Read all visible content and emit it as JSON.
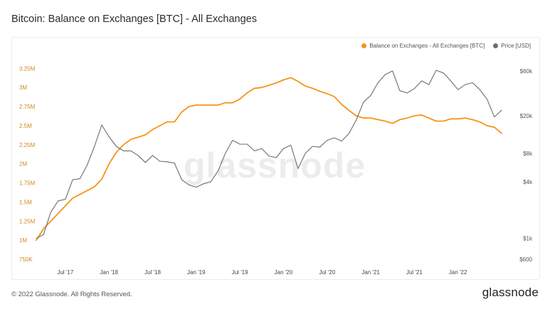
{
  "page": {
    "title": "Bitcoin: Balance on Exchanges [BTC] - All Exchanges",
    "copyright": "© 2022 Glassnode. All Rights Reserved.",
    "logo": "glassnode",
    "watermark": "glassnode"
  },
  "chart_data": {
    "type": "line",
    "legend": {
      "position": "top-right",
      "items": [
        {
          "label": "Balance on Exchanges - All Exchanges [BTC]",
          "color": "#f7931a"
        },
        {
          "label": "Price [USD]",
          "color": "#6d6d6d"
        }
      ]
    },
    "x_ticks": [
      "Jul '17",
      "Jan '18",
      "Jul '18",
      "Jan '19",
      "Jul '19",
      "Jan '20",
      "Jul '20",
      "Jan '21",
      "Jul '21",
      "Jan '22"
    ],
    "x_range": [
      "2017-03",
      "2022-07"
    ],
    "y_left": {
      "ticks": [
        "750K",
        "1M",
        "1.25M",
        "1.5M",
        "1.75M",
        "2M",
        "2.25M",
        "2.5M",
        "2.75M",
        "3M",
        "3.25M"
      ],
      "range": [
        750000,
        3300000
      ],
      "color": "#d08a1c"
    },
    "y_right": {
      "scale": "log",
      "ticks": [
        "$600",
        "$1k",
        "$4k",
        "$8k",
        "$20k",
        "$60k"
      ],
      "range": [
        600,
        70000
      ]
    },
    "grid": false,
    "series": [
      {
        "name": "Balance on Exchanges - All Exchanges [BTC]",
        "axis": "left",
        "color": "#f7931a",
        "points": [
          [
            "2017-03",
            1000000
          ],
          [
            "2017-04",
            1150000
          ],
          [
            "2017-05",
            1250000
          ],
          [
            "2017-06",
            1350000
          ],
          [
            "2017-07",
            1450000
          ],
          [
            "2017-08",
            1550000
          ],
          [
            "2017-09",
            1600000
          ],
          [
            "2017-10",
            1650000
          ],
          [
            "2017-11",
            1700000
          ],
          [
            "2017-12",
            1800000
          ],
          [
            "2018-01",
            2000000
          ],
          [
            "2018-02",
            2150000
          ],
          [
            "2018-03",
            2250000
          ],
          [
            "2018-04",
            2320000
          ],
          [
            "2018-05",
            2350000
          ],
          [
            "2018-06",
            2380000
          ],
          [
            "2018-07",
            2450000
          ],
          [
            "2018-08",
            2500000
          ],
          [
            "2018-09",
            2550000
          ],
          [
            "2018-10",
            2550000
          ],
          [
            "2018-11",
            2680000
          ],
          [
            "2018-12",
            2750000
          ],
          [
            "2019-01",
            2770000
          ],
          [
            "2019-02",
            2770000
          ],
          [
            "2019-03",
            2770000
          ],
          [
            "2019-04",
            2770000
          ],
          [
            "2019-05",
            2800000
          ],
          [
            "2019-06",
            2800000
          ],
          [
            "2019-07",
            2850000
          ],
          [
            "2019-08",
            2930000
          ],
          [
            "2019-09",
            2990000
          ],
          [
            "2019-10",
            3000000
          ],
          [
            "2019-11",
            3030000
          ],
          [
            "2019-12",
            3060000
          ],
          [
            "2020-01",
            3100000
          ],
          [
            "2020-02",
            3130000
          ],
          [
            "2020-03",
            3080000
          ],
          [
            "2020-04",
            3020000
          ],
          [
            "2020-05",
            2990000
          ],
          [
            "2020-06",
            2950000
          ],
          [
            "2020-07",
            2920000
          ],
          [
            "2020-08",
            2880000
          ],
          [
            "2020-09",
            2780000
          ],
          [
            "2020-10",
            2700000
          ],
          [
            "2020-11",
            2630000
          ],
          [
            "2020-12",
            2600000
          ],
          [
            "2021-01",
            2600000
          ],
          [
            "2021-02",
            2580000
          ],
          [
            "2021-03",
            2560000
          ],
          [
            "2021-04",
            2530000
          ],
          [
            "2021-05",
            2580000
          ],
          [
            "2021-06",
            2600000
          ],
          [
            "2021-07",
            2630000
          ],
          [
            "2021-08",
            2640000
          ],
          [
            "2021-09",
            2600000
          ],
          [
            "2021-10",
            2560000
          ],
          [
            "2021-11",
            2560000
          ],
          [
            "2021-12",
            2590000
          ],
          [
            "2022-01",
            2590000
          ],
          [
            "2022-02",
            2600000
          ],
          [
            "2022-03",
            2580000
          ],
          [
            "2022-04",
            2550000
          ],
          [
            "2022-05",
            2500000
          ],
          [
            "2022-06",
            2480000
          ],
          [
            "2022-07",
            2400000
          ]
        ]
      },
      {
        "name": "Price [USD]",
        "axis": "right",
        "color": "#6d6d6d",
        "points": [
          [
            "2017-03",
            1000
          ],
          [
            "2017-04",
            1100
          ],
          [
            "2017-05",
            1900
          ],
          [
            "2017-06",
            2500
          ],
          [
            "2017-07",
            2600
          ],
          [
            "2017-08",
            4200
          ],
          [
            "2017-09",
            4300
          ],
          [
            "2017-10",
            6000
          ],
          [
            "2017-11",
            9500
          ],
          [
            "2017-12",
            16000
          ],
          [
            "2018-01",
            12000
          ],
          [
            "2018-02",
            9500
          ],
          [
            "2018-03",
            8500
          ],
          [
            "2018-04",
            8500
          ],
          [
            "2018-05",
            7600
          ],
          [
            "2018-06",
            6400
          ],
          [
            "2018-07",
            7600
          ],
          [
            "2018-08",
            6600
          ],
          [
            "2018-09",
            6500
          ],
          [
            "2018-10",
            6300
          ],
          [
            "2018-11",
            4200
          ],
          [
            "2018-12",
            3700
          ],
          [
            "2019-01",
            3500
          ],
          [
            "2019-02",
            3800
          ],
          [
            "2019-03",
            4000
          ],
          [
            "2019-04",
            5200
          ],
          [
            "2019-05",
            8000
          ],
          [
            "2019-06",
            11000
          ],
          [
            "2019-07",
            10000
          ],
          [
            "2019-08",
            10000
          ],
          [
            "2019-09",
            8500
          ],
          [
            "2019-10",
            9000
          ],
          [
            "2019-11",
            7500
          ],
          [
            "2019-12",
            7200
          ],
          [
            "2020-01",
            9000
          ],
          [
            "2020-02",
            9800
          ],
          [
            "2020-03",
            5500
          ],
          [
            "2020-04",
            8000
          ],
          [
            "2020-05",
            9500
          ],
          [
            "2020-06",
            9300
          ],
          [
            "2020-07",
            11000
          ],
          [
            "2020-08",
            11700
          ],
          [
            "2020-09",
            10800
          ],
          [
            "2020-10",
            13000
          ],
          [
            "2020-11",
            18000
          ],
          [
            "2020-12",
            28000
          ],
          [
            "2021-01",
            33000
          ],
          [
            "2021-02",
            45000
          ],
          [
            "2021-03",
            55000
          ],
          [
            "2021-04",
            60000
          ],
          [
            "2021-05",
            37000
          ],
          [
            "2021-06",
            35000
          ],
          [
            "2021-07",
            39000
          ],
          [
            "2021-08",
            47000
          ],
          [
            "2021-09",
            43000
          ],
          [
            "2021-10",
            61000
          ],
          [
            "2021-11",
            57000
          ],
          [
            "2021-12",
            47000
          ],
          [
            "2022-01",
            38000
          ],
          [
            "2022-02",
            43000
          ],
          [
            "2022-03",
            45000
          ],
          [
            "2022-04",
            38000
          ],
          [
            "2022-05",
            30000
          ],
          [
            "2022-06",
            19500
          ],
          [
            "2022-07",
            23000
          ]
        ]
      }
    ]
  }
}
